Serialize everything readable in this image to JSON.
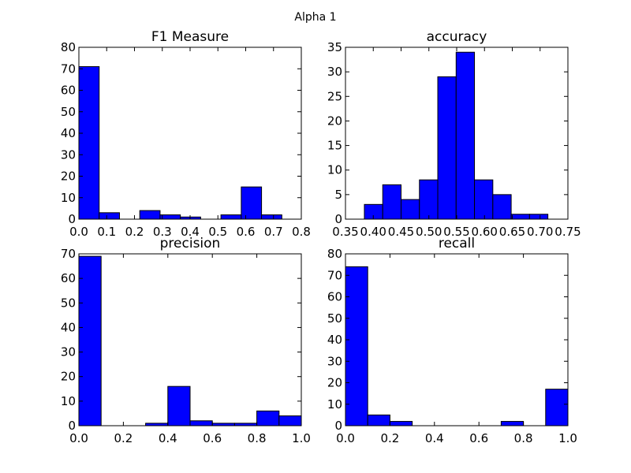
{
  "figure": {
    "suptitle": "Alpha 1",
    "bar_color": "#0000ff",
    "edge_color": "#000000"
  },
  "chart_data": [
    {
      "type": "bar",
      "title": "F1 Measure",
      "xlim": [
        0.0,
        0.8
      ],
      "ylim": [
        0,
        80
      ],
      "xticks": [
        "0.0",
        "0.1",
        "0.2",
        "0.3",
        "0.4",
        "0.5",
        "0.6",
        "0.7",
        "0.8"
      ],
      "yticks": [
        "0",
        "10",
        "20",
        "30",
        "40",
        "50",
        "60",
        "70",
        "80"
      ],
      "bins": [
        {
          "x0": 0.0,
          "x1": 0.073,
          "value": 71
        },
        {
          "x0": 0.073,
          "x1": 0.146,
          "value": 3
        },
        {
          "x0": 0.146,
          "x1": 0.219,
          "value": 0
        },
        {
          "x0": 0.219,
          "x1": 0.292,
          "value": 4
        },
        {
          "x0": 0.292,
          "x1": 0.365,
          "value": 2
        },
        {
          "x0": 0.365,
          "x1": 0.438,
          "value": 1
        },
        {
          "x0": 0.438,
          "x1": 0.511,
          "value": 0
        },
        {
          "x0": 0.511,
          "x1": 0.584,
          "value": 2
        },
        {
          "x0": 0.584,
          "x1": 0.657,
          "value": 15
        },
        {
          "x0": 0.657,
          "x1": 0.73,
          "value": 2
        }
      ],
      "grid": false
    },
    {
      "type": "bar",
      "title": "accuracy",
      "xlim": [
        0.35,
        0.75
      ],
      "ylim": [
        0,
        35
      ],
      "xticks": [
        "0.35",
        "0.40",
        "0.45",
        "0.50",
        "0.55",
        "0.60",
        "0.65",
        "0.70",
        "0.75"
      ],
      "yticks": [
        "0",
        "5",
        "10",
        "15",
        "20",
        "25",
        "30",
        "35"
      ],
      "bins": [
        {
          "x0": 0.384,
          "x1": 0.417,
          "value": 3
        },
        {
          "x0": 0.417,
          "x1": 0.45,
          "value": 7
        },
        {
          "x0": 0.45,
          "x1": 0.483,
          "value": 4
        },
        {
          "x0": 0.483,
          "x1": 0.516,
          "value": 8
        },
        {
          "x0": 0.516,
          "x1": 0.549,
          "value": 29
        },
        {
          "x0": 0.549,
          "x1": 0.582,
          "value": 34
        },
        {
          "x0": 0.582,
          "x1": 0.615,
          "value": 8
        },
        {
          "x0": 0.615,
          "x1": 0.648,
          "value": 5
        },
        {
          "x0": 0.648,
          "x1": 0.681,
          "value": 1
        },
        {
          "x0": 0.681,
          "x1": 0.714,
          "value": 1
        }
      ],
      "grid": false
    },
    {
      "type": "bar",
      "title": "precision",
      "xlim": [
        0.0,
        1.0
      ],
      "ylim": [
        0,
        70
      ],
      "xticks": [
        "0.0",
        "0.2",
        "0.4",
        "0.6",
        "0.8",
        "1.0"
      ],
      "yticks": [
        "0",
        "10",
        "20",
        "30",
        "40",
        "50",
        "60",
        "70"
      ],
      "bins": [
        {
          "x0": 0.0,
          "x1": 0.1,
          "value": 69
        },
        {
          "x0": 0.1,
          "x1": 0.2,
          "value": 0
        },
        {
          "x0": 0.2,
          "x1": 0.3,
          "value": 0
        },
        {
          "x0": 0.3,
          "x1": 0.4,
          "value": 1
        },
        {
          "x0": 0.4,
          "x1": 0.5,
          "value": 16
        },
        {
          "x0": 0.5,
          "x1": 0.6,
          "value": 2
        },
        {
          "x0": 0.6,
          "x1": 0.7,
          "value": 1
        },
        {
          "x0": 0.7,
          "x1": 0.8,
          "value": 1
        },
        {
          "x0": 0.8,
          "x1": 0.9,
          "value": 6
        },
        {
          "x0": 0.9,
          "x1": 1.0,
          "value": 4
        }
      ],
      "grid": false
    },
    {
      "type": "bar",
      "title": "recall",
      "xlim": [
        0.0,
        1.0
      ],
      "ylim": [
        0,
        80
      ],
      "xticks": [
        "0.0",
        "0.2",
        "0.4",
        "0.6",
        "0.8",
        "1.0"
      ],
      "yticks": [
        "0",
        "10",
        "20",
        "30",
        "40",
        "50",
        "60",
        "70",
        "80"
      ],
      "bins": [
        {
          "x0": 0.0,
          "x1": 0.1,
          "value": 74
        },
        {
          "x0": 0.1,
          "x1": 0.2,
          "value": 5
        },
        {
          "x0": 0.2,
          "x1": 0.3,
          "value": 2
        },
        {
          "x0": 0.3,
          "x1": 0.4,
          "value": 0
        },
        {
          "x0": 0.4,
          "x1": 0.5,
          "value": 0
        },
        {
          "x0": 0.5,
          "x1": 0.6,
          "value": 0
        },
        {
          "x0": 0.6,
          "x1": 0.7,
          "value": 0
        },
        {
          "x0": 0.7,
          "x1": 0.8,
          "value": 2
        },
        {
          "x0": 0.8,
          "x1": 0.9,
          "value": 0
        },
        {
          "x0": 0.9,
          "x1": 1.0,
          "value": 17
        }
      ],
      "grid": false
    }
  ]
}
